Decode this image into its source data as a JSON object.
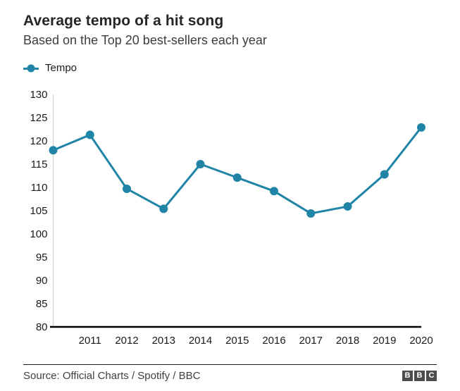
{
  "colors": {
    "accent": "#1f84a6",
    "y_axis_line": "#cccccc",
    "baseline": "#000000",
    "tick_text": "#1a1a1a",
    "logo_bg": "#4d4d4d"
  },
  "chart_data": {
    "type": "line",
    "title": "Average tempo of a hit song",
    "subtitle": "Based on the Top 20 best-sellers each year",
    "xlabel": "",
    "ylabel": "",
    "ylim": [
      80,
      130
    ],
    "ytick_step": 5,
    "grid": false,
    "legend_position": "top-left",
    "x": [
      2010,
      2011,
      2012,
      2013,
      2014,
      2015,
      2016,
      2017,
      2018,
      2019,
      2020
    ],
    "x_tick_labels": [
      "",
      "2011",
      "2012",
      "2013",
      "2014",
      "2015",
      "2016",
      "2017",
      "2018",
      "2019",
      "2020"
    ],
    "series": [
      {
        "name": "Tempo",
        "color": "#1f84a6",
        "values": [
          118.0,
          121.3,
          109.7,
          105.4,
          115.0,
          112.1,
          109.2,
          104.4,
          105.9,
          112.8,
          122.9
        ]
      }
    ]
  },
  "footer": {
    "source": "Source: Official Charts / Spotify / BBC",
    "logo_letters": [
      "B",
      "B",
      "C"
    ]
  }
}
